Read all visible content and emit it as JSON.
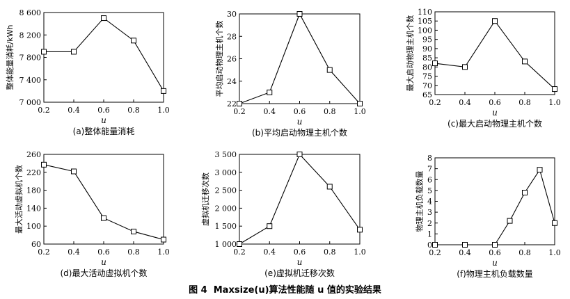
{
  "figure": {
    "caption_label": "图 4",
    "caption_text": "Maxsize(u)算法性能随 u 值的实验结果"
  },
  "chart_data": [
    {
      "type": "line",
      "caption": "(a)整体能量消耗",
      "xlabel": "u",
      "ylabel": "整体能量消耗/kWh",
      "x": [
        0.2,
        0.4,
        0.6,
        0.8,
        1.0
      ],
      "values": [
        7900,
        7900,
        8500,
        8100,
        7200
      ],
      "xlim": [
        0.2,
        1.0
      ],
      "ylim": [
        7000,
        8600
      ],
      "xticks": [
        0.2,
        0.4,
        0.6,
        0.8,
        1.0
      ],
      "xtick_labels": [
        "0.2",
        "0.4",
        "0.6",
        "0.8",
        "1.0"
      ],
      "yticks": [
        7000,
        7400,
        7800,
        8200,
        8600
      ],
      "ytick_labels": [
        "7 000",
        "7 400",
        "7 800",
        "8 200",
        "8 600"
      ],
      "marker": "square",
      "grid": false
    },
    {
      "type": "line",
      "caption": "(b)平均启动物理主机个数",
      "xlabel": "u",
      "ylabel": "平均启动物理主机个数",
      "x": [
        0.2,
        0.4,
        0.6,
        0.8,
        1.0
      ],
      "values": [
        22,
        23,
        30,
        25,
        22
      ],
      "xlim": [
        0.2,
        1.0
      ],
      "ylim": [
        22,
        30
      ],
      "xticks": [
        0.2,
        0.4,
        0.6,
        0.8,
        1.0
      ],
      "xtick_labels": [
        "0.2",
        "0.4",
        "0.6",
        "0.8",
        "1.0"
      ],
      "yticks": [
        22,
        24,
        26,
        28,
        30
      ],
      "ytick_labels": [
        "22",
        "24",
        "26",
        "28",
        "30"
      ],
      "marker": "square",
      "grid": false
    },
    {
      "type": "line",
      "caption": "(c)最大启动物理主机个数",
      "xlabel": "u",
      "ylabel": "最大启动物理主机个数",
      "x": [
        0.2,
        0.4,
        0.6,
        0.8,
        1.0
      ],
      "values": [
        82,
        80,
        105,
        83,
        68
      ],
      "xlim": [
        0.2,
        1.0
      ],
      "ylim": [
        65,
        110
      ],
      "xticks": [
        0.2,
        0.4,
        0.6,
        0.8,
        1.0
      ],
      "xtick_labels": [
        "0.2",
        "0.4",
        "0.6",
        "0.8",
        "1.0"
      ],
      "yticks": [
        65,
        70,
        75,
        80,
        85,
        90,
        95,
        100,
        105,
        110
      ],
      "ytick_labels": [
        "65",
        "70",
        "75",
        "80",
        "85",
        "90",
        "95",
        "100",
        "105",
        "110"
      ],
      "marker": "square",
      "grid": false
    },
    {
      "type": "line",
      "caption": "(d)最大活动虚拟机个数",
      "xlabel": "u",
      "ylabel": "最大活动虚拟机个数",
      "x": [
        0.2,
        0.4,
        0.6,
        0.8,
        1.0
      ],
      "values": [
        237,
        222,
        118,
        88,
        70
      ],
      "xlim": [
        0.2,
        1.0
      ],
      "ylim": [
        60,
        260
      ],
      "xticks": [
        0.2,
        0.4,
        0.6,
        0.8,
        1.0
      ],
      "xtick_labels": [
        "0.2",
        "0.4",
        "0.6",
        "0.8",
        "1.0"
      ],
      "yticks": [
        60,
        100,
        140,
        180,
        220,
        260
      ],
      "ytick_labels": [
        "60",
        "100",
        "140",
        "180",
        "220",
        "260"
      ],
      "marker": "square",
      "grid": false
    },
    {
      "type": "line",
      "caption": "(e)虚拟机迁移次数",
      "xlabel": "u",
      "ylabel": "虚拟机迁移次数",
      "x": [
        0.2,
        0.4,
        0.6,
        0.8,
        1.0
      ],
      "values": [
        1000,
        1500,
        3500,
        2600,
        1400
      ],
      "xlim": [
        0.2,
        1.0
      ],
      "ylim": [
        1000,
        3500
      ],
      "xticks": [
        0.2,
        0.4,
        0.6,
        0.8,
        1.0
      ],
      "xtick_labels": [
        "0.2",
        "0.4",
        "0.6",
        "0.8",
        "1.0"
      ],
      "yticks": [
        1000,
        1500,
        2000,
        2500,
        3000,
        3500
      ],
      "ytick_labels": [
        "1 000",
        "1 500",
        "2 000",
        "2 500",
        "3 000",
        "3 500"
      ],
      "marker": "square",
      "grid": false
    },
    {
      "type": "line",
      "caption": "(f)物理主机负载数量",
      "xlabel": "u",
      "ylabel": "物理主机负载数量",
      "x": [
        0.2,
        0.4,
        0.6,
        0.7,
        0.8,
        0.9,
        1.0
      ],
      "values": [
        0,
        0,
        0,
        2.2,
        4.8,
        6.9,
        2
      ],
      "xlim": [
        0.2,
        1.0
      ],
      "ylim": [
        0,
        8
      ],
      "xticks": [
        0.2,
        0.4,
        0.6,
        0.8,
        1.0
      ],
      "xtick_labels": [
        "0.2",
        "0.4",
        "0.6",
        "0.8",
        "1.0"
      ],
      "yticks": [
        0,
        1,
        2,
        3,
        4,
        5,
        6,
        7,
        8
      ],
      "ytick_labels": [
        "0",
        "1",
        "2",
        "3",
        "4",
        "5",
        "6",
        "7",
        "8"
      ],
      "marker": "square",
      "grid": false
    }
  ]
}
